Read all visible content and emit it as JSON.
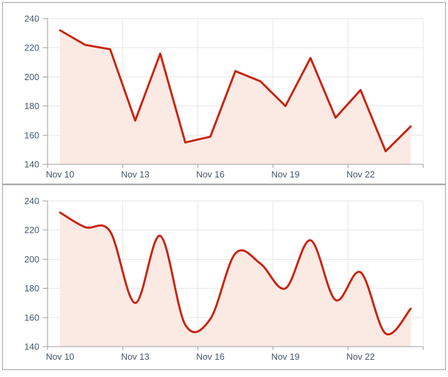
{
  "page": {
    "background": "#ffffff",
    "panel_border_color": "#a6a6a6"
  },
  "chart_data": [
    {
      "id": "top-chart",
      "type": "area",
      "interpolation": "linear",
      "title": "",
      "xlabel": "",
      "ylabel": "",
      "x": [
        "Nov 10",
        "Nov 11",
        "Nov 12",
        "Nov 13",
        "Nov 14",
        "Nov 15",
        "Nov 16",
        "Nov 17",
        "Nov 18",
        "Nov 19",
        "Nov 20",
        "Nov 21",
        "Nov 22",
        "Nov 23",
        "Nov 24"
      ],
      "values": [
        232,
        222,
        219,
        170,
        216,
        155,
        159,
        204,
        197,
        180,
        213,
        172,
        191,
        149,
        166
      ],
      "xtick_labels": [
        "Nov 10",
        "Nov 13",
        "Nov 16",
        "Nov 19",
        "Nov 22"
      ],
      "xtick_every": 3,
      "ylim": [
        140,
        240
      ],
      "ytick_step": 20,
      "ytick_labels": [
        "140",
        "160",
        "180",
        "200",
        "220",
        "240"
      ],
      "grid": true,
      "legend": "none",
      "colors": {
        "line": "#c8230d",
        "area_fill": "#fbe9e4",
        "grid": "#e6e6e6",
        "axis": "#9b9b9b",
        "labels": "#44566b"
      }
    },
    {
      "id": "bottom-chart",
      "type": "area",
      "interpolation": "smooth",
      "title": "",
      "xlabel": "",
      "ylabel": "",
      "x": [
        "Nov 10",
        "Nov 11",
        "Nov 12",
        "Nov 13",
        "Nov 14",
        "Nov 15",
        "Nov 16",
        "Nov 17",
        "Nov 18",
        "Nov 19",
        "Nov 20",
        "Nov 21",
        "Nov 22",
        "Nov 23",
        "Nov 24"
      ],
      "values": [
        232,
        222,
        219,
        170,
        216,
        155,
        159,
        204,
        197,
        180,
        213,
        172,
        191,
        149,
        166
      ],
      "xtick_labels": [
        "Nov 10",
        "Nov 13",
        "Nov 16",
        "Nov 19",
        "Nov 22"
      ],
      "xtick_every": 3,
      "ylim": [
        140,
        240
      ],
      "ytick_step": 20,
      "ytick_labels": [
        "140",
        "160",
        "180",
        "200",
        "220",
        "240"
      ],
      "grid": true,
      "legend": "none",
      "colors": {
        "line": "#c8230d",
        "area_fill": "#fbe9e4",
        "grid": "#e6e6e6",
        "axis": "#9b9b9b",
        "labels": "#44566b"
      }
    }
  ]
}
